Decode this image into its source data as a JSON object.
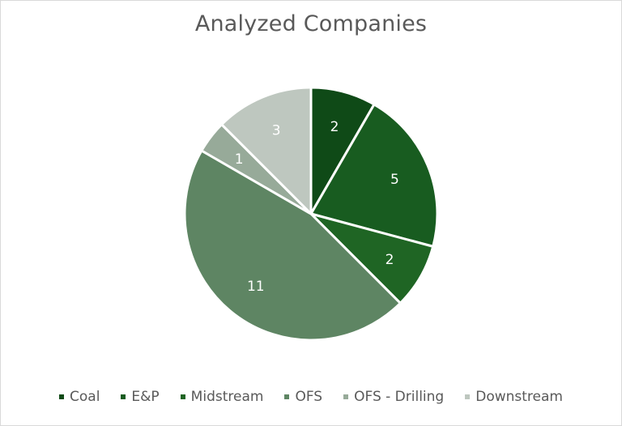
{
  "chart_data": {
    "type": "pie",
    "title": "Analyzed Companies",
    "categories": [
      "Coal",
      "E&P",
      "Midstream",
      "OFS",
      "OFS - Drilling",
      "Downstream"
    ],
    "values": [
      2,
      5,
      2,
      11,
      1,
      3
    ],
    "data_labels": [
      "2",
      "5",
      "2",
      "11",
      "1",
      "3"
    ],
    "colors": [
      "#0f4a17",
      "#185c20",
      "#1f6524",
      "#5e8563",
      "#97aa99",
      "#bec7bf"
    ],
    "start_angle": "12 o'clock",
    "direction": "clockwise",
    "legend": "bottom"
  }
}
